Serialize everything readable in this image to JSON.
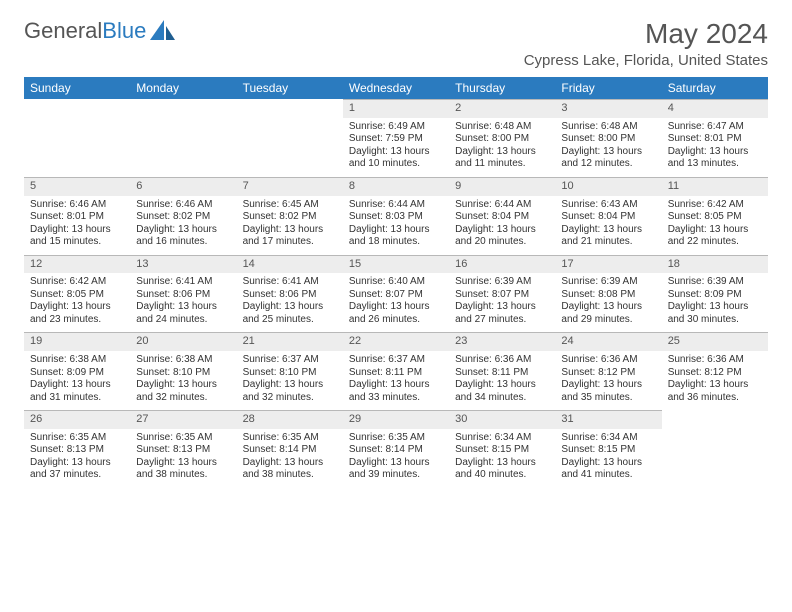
{
  "brand": {
    "part1": "General",
    "part2": "Blue"
  },
  "title": {
    "month": "May 2024",
    "location": "Cypress Lake, Florida, United States"
  },
  "colors": {
    "header_bg": "#2b7bbf",
    "header_fg": "#ffffff",
    "daynum_bg": "#ededed",
    "daynum_border": "#b8b8b8",
    "text": "#333333",
    "title_text": "#555555",
    "page_bg": "#ffffff"
  },
  "typography": {
    "daynum_fontsize": 11,
    "body_fontsize": 10,
    "header_fontsize": 12,
    "title_fontsize": 28,
    "location_fontsize": 15
  },
  "weekdays": [
    "Sunday",
    "Monday",
    "Tuesday",
    "Wednesday",
    "Thursday",
    "Friday",
    "Saturday"
  ],
  "weeks": [
    [
      null,
      null,
      null,
      {
        "n": "1",
        "sr": "6:49 AM",
        "ss": "7:59 PM",
        "dl": "13 hours and 10 minutes"
      },
      {
        "n": "2",
        "sr": "6:48 AM",
        "ss": "8:00 PM",
        "dl": "13 hours and 11 minutes"
      },
      {
        "n": "3",
        "sr": "6:48 AM",
        "ss": "8:00 PM",
        "dl": "13 hours and 12 minutes"
      },
      {
        "n": "4",
        "sr": "6:47 AM",
        "ss": "8:01 PM",
        "dl": "13 hours and 13 minutes"
      }
    ],
    [
      {
        "n": "5",
        "sr": "6:46 AM",
        "ss": "8:01 PM",
        "dl": "13 hours and 15 minutes"
      },
      {
        "n": "6",
        "sr": "6:46 AM",
        "ss": "8:02 PM",
        "dl": "13 hours and 16 minutes"
      },
      {
        "n": "7",
        "sr": "6:45 AM",
        "ss": "8:02 PM",
        "dl": "13 hours and 17 minutes"
      },
      {
        "n": "8",
        "sr": "6:44 AM",
        "ss": "8:03 PM",
        "dl": "13 hours and 18 minutes"
      },
      {
        "n": "9",
        "sr": "6:44 AM",
        "ss": "8:04 PM",
        "dl": "13 hours and 20 minutes"
      },
      {
        "n": "10",
        "sr": "6:43 AM",
        "ss": "8:04 PM",
        "dl": "13 hours and 21 minutes"
      },
      {
        "n": "11",
        "sr": "6:42 AM",
        "ss": "8:05 PM",
        "dl": "13 hours and 22 minutes"
      }
    ],
    [
      {
        "n": "12",
        "sr": "6:42 AM",
        "ss": "8:05 PM",
        "dl": "13 hours and 23 minutes"
      },
      {
        "n": "13",
        "sr": "6:41 AM",
        "ss": "8:06 PM",
        "dl": "13 hours and 24 minutes"
      },
      {
        "n": "14",
        "sr": "6:41 AM",
        "ss": "8:06 PM",
        "dl": "13 hours and 25 minutes"
      },
      {
        "n": "15",
        "sr": "6:40 AM",
        "ss": "8:07 PM",
        "dl": "13 hours and 26 minutes"
      },
      {
        "n": "16",
        "sr": "6:39 AM",
        "ss": "8:07 PM",
        "dl": "13 hours and 27 minutes"
      },
      {
        "n": "17",
        "sr": "6:39 AM",
        "ss": "8:08 PM",
        "dl": "13 hours and 29 minutes"
      },
      {
        "n": "18",
        "sr": "6:39 AM",
        "ss": "8:09 PM",
        "dl": "13 hours and 30 minutes"
      }
    ],
    [
      {
        "n": "19",
        "sr": "6:38 AM",
        "ss": "8:09 PM",
        "dl": "13 hours and 31 minutes"
      },
      {
        "n": "20",
        "sr": "6:38 AM",
        "ss": "8:10 PM",
        "dl": "13 hours and 32 minutes"
      },
      {
        "n": "21",
        "sr": "6:37 AM",
        "ss": "8:10 PM",
        "dl": "13 hours and 32 minutes"
      },
      {
        "n": "22",
        "sr": "6:37 AM",
        "ss": "8:11 PM",
        "dl": "13 hours and 33 minutes"
      },
      {
        "n": "23",
        "sr": "6:36 AM",
        "ss": "8:11 PM",
        "dl": "13 hours and 34 minutes"
      },
      {
        "n": "24",
        "sr": "6:36 AM",
        "ss": "8:12 PM",
        "dl": "13 hours and 35 minutes"
      },
      {
        "n": "25",
        "sr": "6:36 AM",
        "ss": "8:12 PM",
        "dl": "13 hours and 36 minutes"
      }
    ],
    [
      {
        "n": "26",
        "sr": "6:35 AM",
        "ss": "8:13 PM",
        "dl": "13 hours and 37 minutes"
      },
      {
        "n": "27",
        "sr": "6:35 AM",
        "ss": "8:13 PM",
        "dl": "13 hours and 38 minutes"
      },
      {
        "n": "28",
        "sr": "6:35 AM",
        "ss": "8:14 PM",
        "dl": "13 hours and 38 minutes"
      },
      {
        "n": "29",
        "sr": "6:35 AM",
        "ss": "8:14 PM",
        "dl": "13 hours and 39 minutes"
      },
      {
        "n": "30",
        "sr": "6:34 AM",
        "ss": "8:15 PM",
        "dl": "13 hours and 40 minutes"
      },
      {
        "n": "31",
        "sr": "6:34 AM",
        "ss": "8:15 PM",
        "dl": "13 hours and 41 minutes"
      },
      null
    ]
  ],
  "labels": {
    "sunrise": "Sunrise:",
    "sunset": "Sunset:",
    "daylight": "Daylight:"
  }
}
